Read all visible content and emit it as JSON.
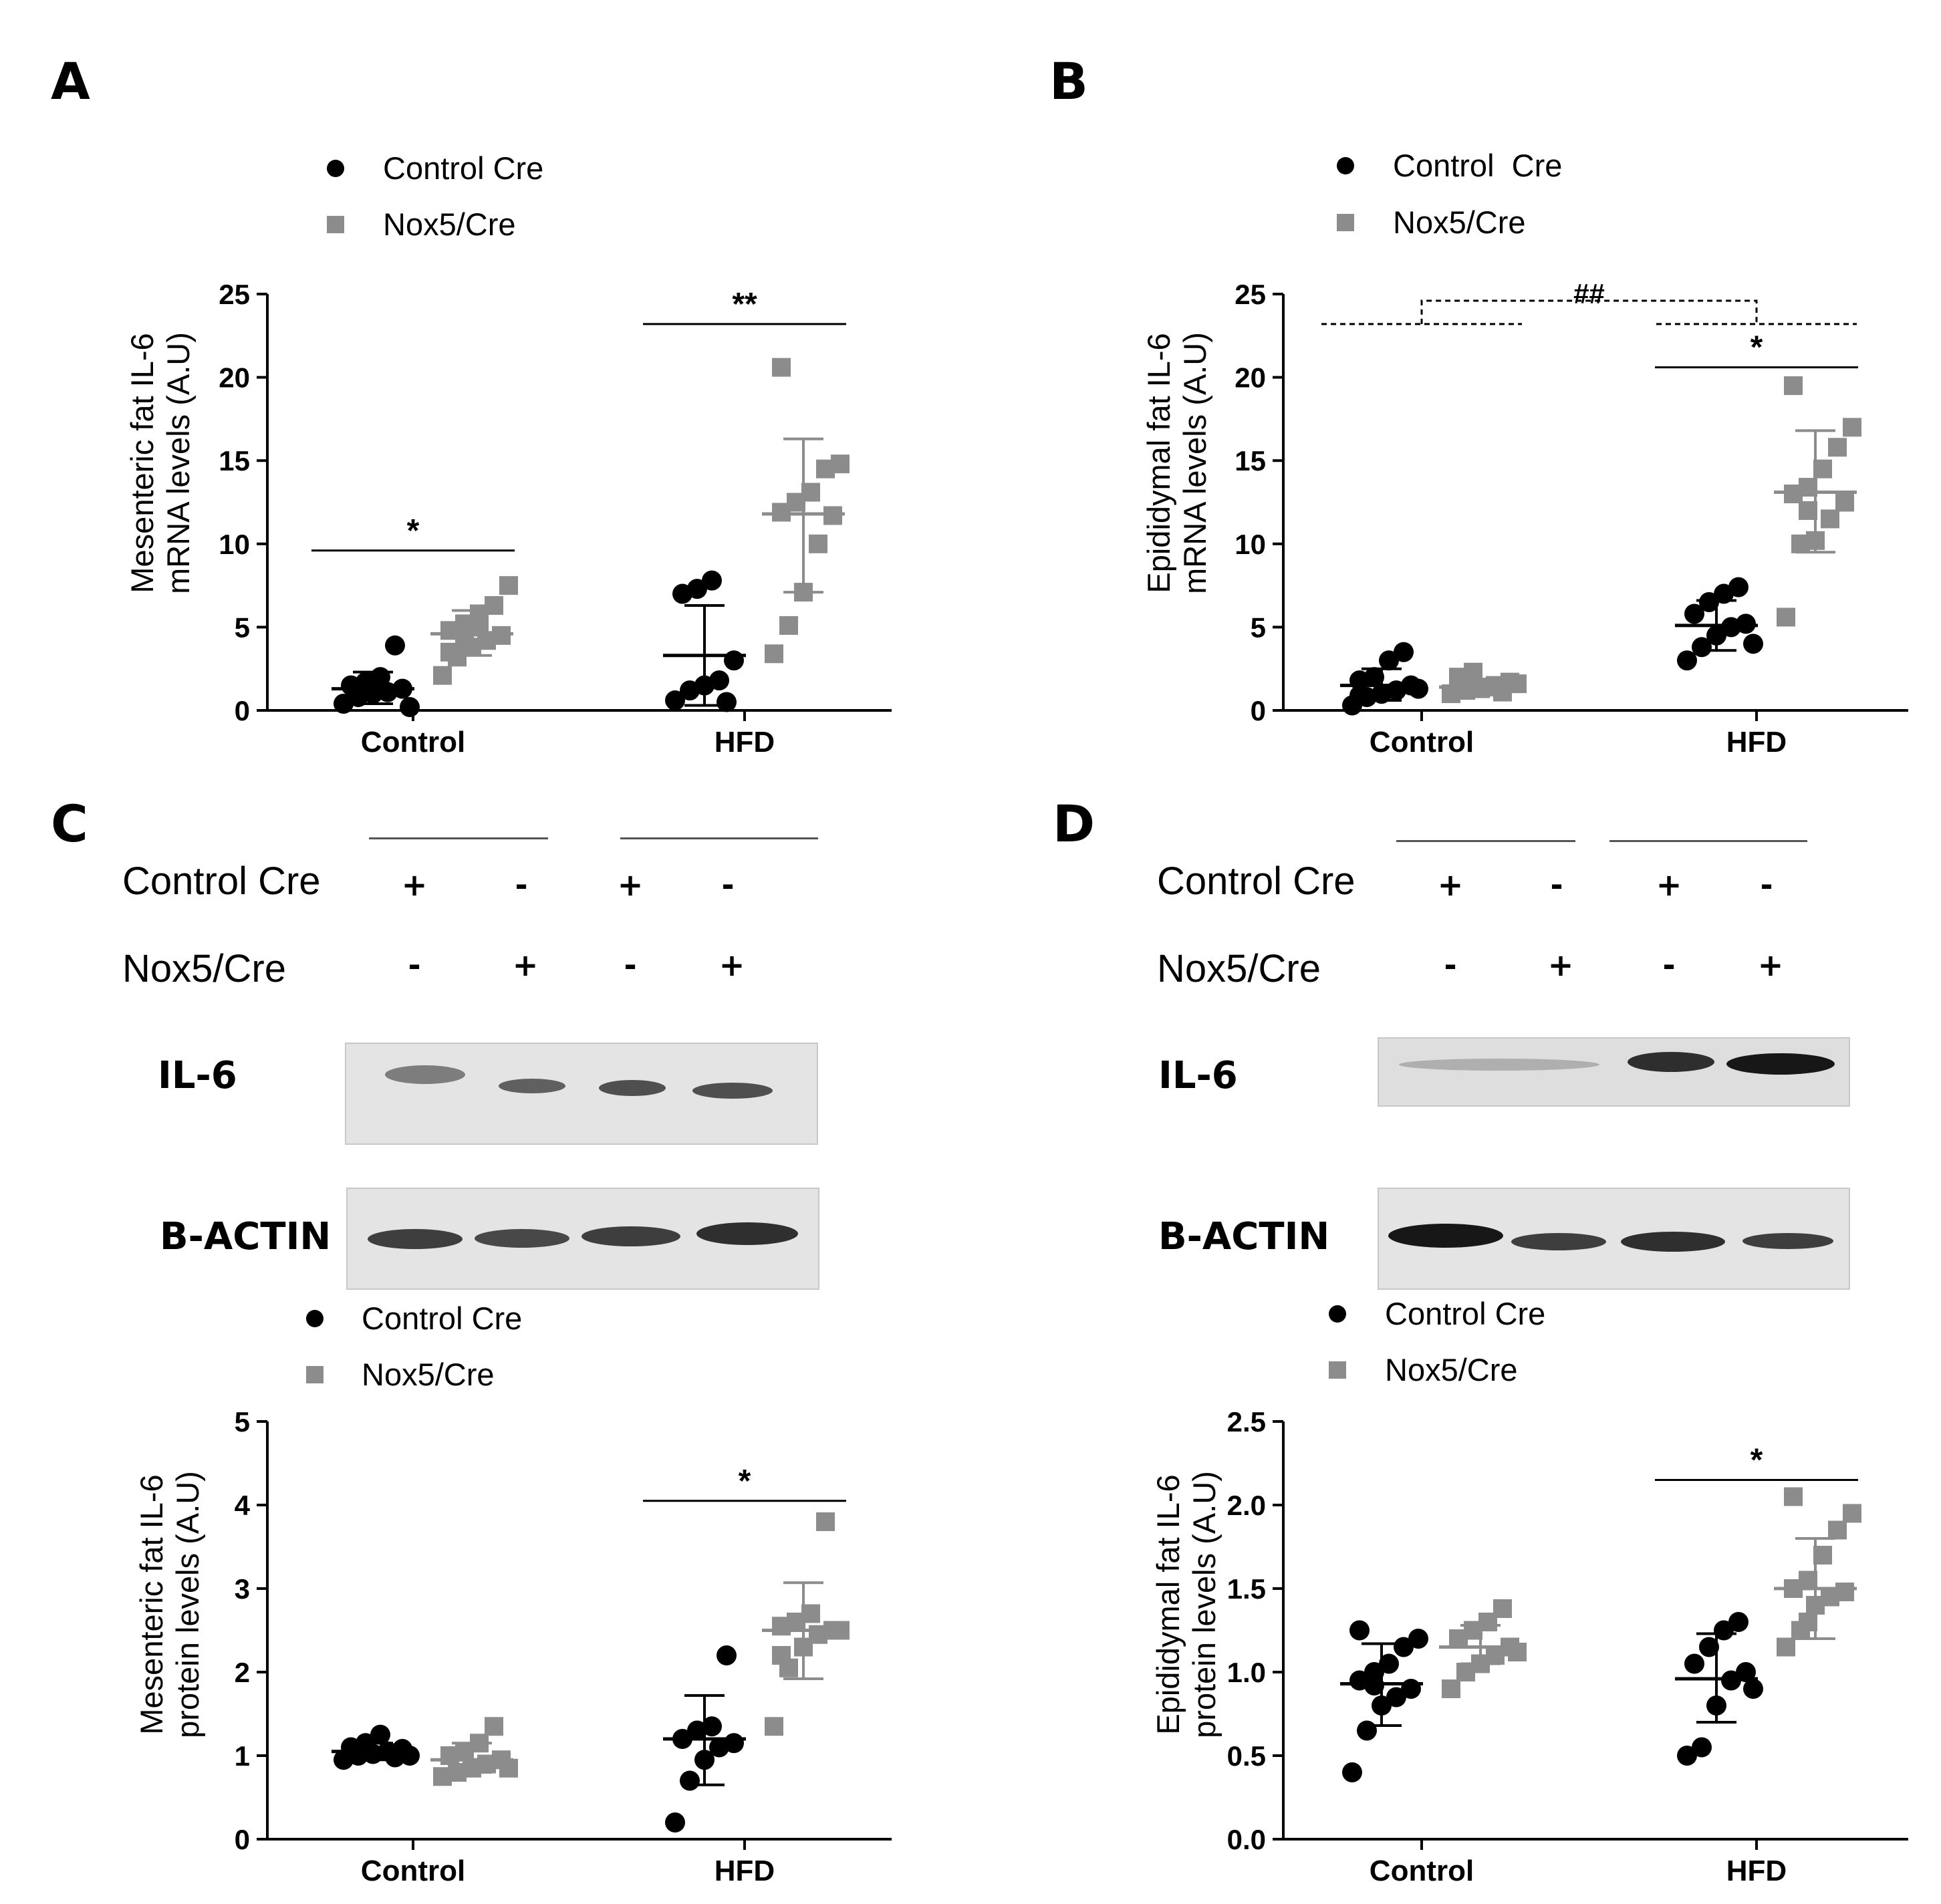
{
  "panels": {
    "a": {
      "label": "A"
    },
    "b": {
      "label": "B"
    },
    "c": {
      "label": "C"
    },
    "d": {
      "label": "D"
    }
  },
  "legend": {
    "control": "Control Cre",
    "control_b": "Control  Cre",
    "nox": "Nox5/Cre"
  },
  "blot": {
    "rows": [
      "Control Cre",
      "Nox5/Cre"
    ],
    "c_signs": {
      "control": [
        "+",
        "-",
        "+",
        "-"
      ],
      "nox": [
        "-",
        "+",
        "-",
        "+"
      ]
    },
    "d_signs": {
      "control": [
        "+",
        "-",
        "+",
        "-"
      ],
      "nox": [
        "-",
        "+",
        "-",
        "+"
      ]
    },
    "bands": [
      "IL-6",
      "B-ACTIN"
    ]
  },
  "colors": {
    "control": "#000000",
    "nox": "#8c8c8c",
    "blot_bg": "#e4e4e4"
  },
  "chart_data": [
    {
      "type": "scatter",
      "panel": "A",
      "ylabel_line1": "Mesenteric fat IL-6",
      "ylabel_line2": "mRNA levels (A.U)",
      "ylim": [
        0,
        25
      ],
      "yticks": [
        "0",
        "5",
        "10",
        "15",
        "20",
        "25"
      ],
      "categories": [
        "Control",
        "HFD"
      ],
      "series": [
        {
          "name": "Control Cre",
          "values": [
            [
              0.4,
              0.8,
              1.0,
              1.1,
              1.3,
              1.5,
              1.7,
              2.0,
              3.9,
              0.2
            ],
            [
              0.6,
              1.2,
              1.5,
              1.8,
              3.0,
              7.0,
              7.3,
              7.8,
              0.5
            ]
          ],
          "mean": [
            1.3,
            3.3
          ],
          "sd_lo": [
            0.4,
            0.3
          ],
          "sd_hi": [
            2.3,
            6.3
          ]
        },
        {
          "name": "Nox5/Cre",
          "values": [
            [
              2.1,
              3.2,
              3.8,
              4.2,
              4.5,
              4.8,
              5.2,
              5.8,
              6.3,
              7.5,
              3.5,
              4.0,
              5.0
            ],
            [
              3.4,
              5.1,
              7.1,
              10.0,
              11.7,
              11.9,
              12.5,
              13.1,
              14.5,
              14.8,
              20.6
            ]
          ],
          "mean": [
            4.6,
            11.8
          ],
          "sd_lo": [
            3.3,
            7.1
          ],
          "sd_hi": [
            6.0,
            16.3
          ]
        }
      ],
      "annotations": [
        {
          "text": "*",
          "category": "Control",
          "y": 9.6
        },
        {
          "text": "**",
          "category": "HFD",
          "y": 23.2
        }
      ]
    },
    {
      "type": "scatter",
      "panel": "B",
      "ylabel_line1": "Epididymal fat IL-6",
      "ylabel_line2": "mRNA levels (A.U)",
      "ylim": [
        0,
        25
      ],
      "yticks": [
        "0",
        "5",
        "10",
        "15",
        "20",
        "25"
      ],
      "categories": [
        "Control",
        "HFD"
      ],
      "series": [
        {
          "name": "Control  Cre",
          "values": [
            [
              0.3,
              0.8,
              1.0,
              1.2,
              1.5,
              1.8,
              2.0,
              3.0,
              3.5,
              1.3,
              0.9
            ],
            [
              3.0,
              3.8,
              4.5,
              5.0,
              5.2,
              5.8,
              6.5,
              7.0,
              7.4,
              4.0
            ]
          ],
          "mean": [
            1.5,
            5.1
          ],
          "sd_lo": [
            0.6,
            3.6
          ],
          "sd_hi": [
            2.5,
            6.6
          ]
        },
        {
          "name": "Nox5/Cre",
          "values": [
            [
              1.0,
              1.2,
              1.3,
              1.5,
              1.7,
              2.0,
              2.3,
              1.4,
              1.1,
              1.6
            ],
            [
              5.6,
              10.0,
              10.2,
              11.5,
              12.5,
              13.0,
              13.4,
              14.5,
              15.8,
              17.0,
              19.5,
              12.0
            ]
          ],
          "mean": [
            1.4,
            13.1
          ],
          "sd_lo": [
            1.0,
            9.5
          ],
          "sd_hi": [
            1.8,
            16.8
          ]
        }
      ],
      "annotations": [
        {
          "text": "*",
          "category": "HFD",
          "y": 20.6
        },
        {
          "text": "##",
          "category": "between",
          "y": 24.6
        }
      ]
    },
    {
      "type": "scatter",
      "panel": "C",
      "ylabel_line1": "Mesenteric fat IL-6",
      "ylabel_line2": "protein levels (A.U)",
      "ylim": [
        0,
        5
      ],
      "yticks": [
        "0",
        "1",
        "2",
        "3",
        "4",
        "5"
      ],
      "categories": [
        "Control",
        "HFD"
      ],
      "series": [
        {
          "name": "Control Cre",
          "values": [
            [
              0.95,
              1.0,
              1.02,
              1.05,
              1.08,
              1.1,
              1.15,
              1.25,
              0.98,
              1.0
            ],
            [
              0.2,
              0.7,
              0.95,
              1.1,
              1.15,
              1.2,
              1.3,
              1.35,
              2.2
            ]
          ],
          "mean": [
            1.05,
            1.2
          ],
          "sd_lo": [
            0.95,
            0.65
          ],
          "sd_hi": [
            1.15,
            1.72
          ]
        },
        {
          "name": "Nox5/Cre",
          "values": [
            [
              0.75,
              0.8,
              0.85,
              0.9,
              0.95,
              1.0,
              1.05,
              1.15,
              1.35,
              0.85
            ],
            [
              1.35,
              2.05,
              2.3,
              2.45,
              2.5,
              2.55,
              2.6,
              2.7,
              3.8,
              2.5,
              2.2
            ]
          ],
          "mean": [
            0.95,
            2.5
          ],
          "sd_lo": [
            0.8,
            1.92
          ],
          "sd_hi": [
            1.15,
            3.07
          ]
        }
      ],
      "annotations": [
        {
          "text": "*",
          "category": "HFD",
          "y": 4.05
        }
      ]
    },
    {
      "type": "scatter",
      "panel": "D",
      "ylabel_line1": "Epididymal fat IL-6",
      "ylabel_line2": "protein levels (A.U)",
      "ylim": [
        0,
        2.5
      ],
      "yticks": [
        "0.0",
        "0.5",
        "1.0",
        "1.5",
        "2.0",
        "2.5"
      ],
      "categories": [
        "Control",
        "HFD"
      ],
      "series": [
        {
          "name": "Control Cre",
          "values": [
            [
              0.4,
              0.65,
              0.8,
              0.85,
              0.9,
              0.95,
              1.0,
              1.05,
              1.15,
              1.2,
              1.25,
              0.92
            ],
            [
              0.5,
              0.55,
              0.8,
              0.95,
              1.0,
              1.05,
              1.15,
              1.25,
              1.3,
              0.9
            ]
          ],
          "mean": [
            0.93,
            0.96
          ],
          "sd_lo": [
            0.68,
            0.7
          ],
          "sd_hi": [
            1.17,
            1.23
          ]
        },
        {
          "name": "Nox5/Cre",
          "values": [
            [
              0.9,
              1.0,
              1.05,
              1.1,
              1.15,
              1.2,
              1.25,
              1.3,
              1.38,
              1.12
            ],
            [
              1.15,
              1.25,
              1.4,
              1.45,
              1.48,
              1.5,
              1.55,
              1.7,
              1.85,
              1.95,
              2.05,
              1.3
            ]
          ],
          "mean": [
            1.15,
            1.5
          ],
          "sd_lo": [
            1.05,
            1.2
          ],
          "sd_hi": [
            1.28,
            1.8
          ]
        }
      ],
      "annotations": [
        {
          "text": "*",
          "category": "HFD",
          "y": 2.15
        }
      ]
    }
  ]
}
